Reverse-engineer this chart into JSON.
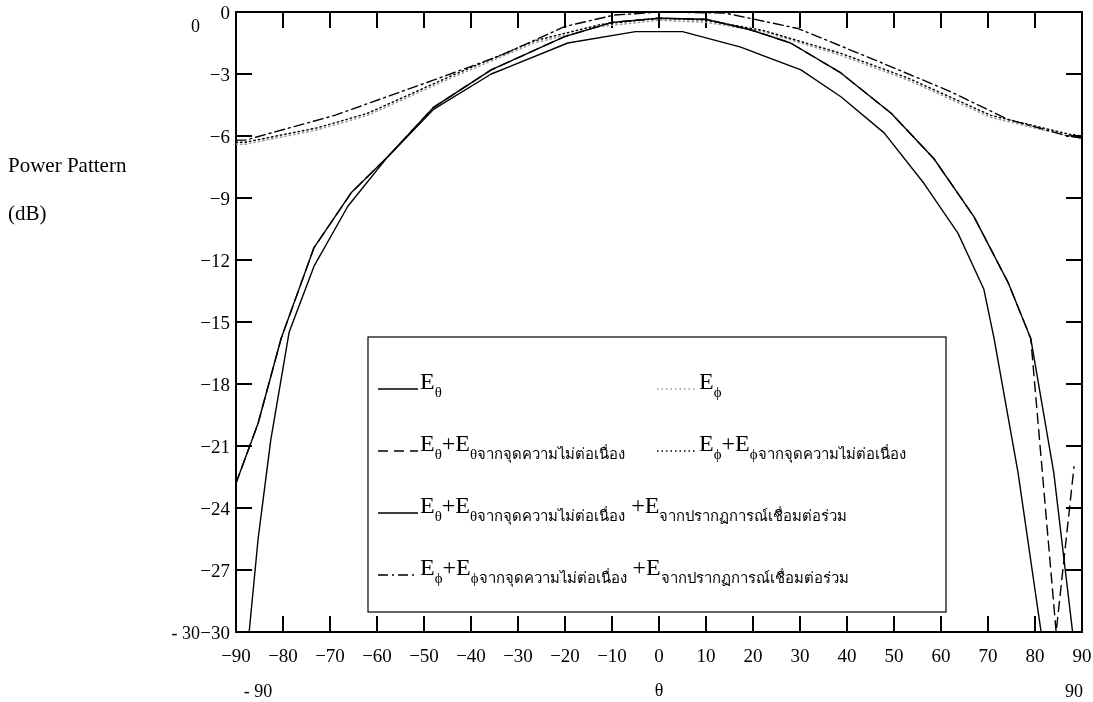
{
  "chart_data": {
    "type": "line",
    "xlabel": "θ",
    "ylabel": "Power Pattern\n(dB)",
    "xlim": [
      -90,
      90
    ],
    "xticks": [
      -90,
      -80,
      -70,
      -60,
      -50,
      -40,
      -30,
      -20,
      -10,
      0,
      10,
      20,
      30,
      40,
      50,
      60,
      70,
      80,
      90
    ],
    "ylim": [
      -30,
      0
    ],
    "yticks": [
      0,
      -3,
      -6,
      -9,
      -12,
      -15,
      -18,
      -21,
      -24,
      -27,
      -30
    ],
    "legend": "bottom",
    "annotations": [
      "0",
      "- 30",
      "- 90",
      "90"
    ],
    "series": [
      {
        "name": "E$_{θ}$",
        "color": "#000000",
        "line_style": "solid",
        "x": [
          -87.2,
          -85.3,
          -82.6,
          -78.7,
          -73.4,
          -66.2,
          -57.7,
          -47.9,
          -35.7,
          -19.4,
          -5,
          0,
          5,
          17.4,
          30.2,
          38.7,
          47.9,
          56.4,
          63.6,
          69.1,
          71.3,
          76.4,
          81.3
        ],
        "values": [
          -30,
          -25.5,
          -20.7,
          -15.5,
          -12.3,
          -9.4,
          -7.0,
          -4.7,
          -3.0,
          -1.5,
          -0.95,
          -0.95,
          -0.95,
          -1.7,
          -2.8,
          -4.1,
          -5.85,
          -8.3,
          -10.7,
          -13.4,
          -15.8,
          -22.3,
          -30
        ]
      },
      {
        "name": "E$_{ϕ}$",
        "color": "#999999",
        "line_style": "dotted",
        "x": [
          -90,
          -88,
          -72.6,
          -62,
          -44.3,
          -26.6,
          -12.3,
          0,
          10,
          22.3,
          38.7,
          53,
          70.6,
          87,
          90
        ],
        "values": [
          -6.4,
          -6.4,
          -5.7,
          -5.0,
          -3.2,
          -1.5,
          -0.7,
          -0.4,
          -0.5,
          -0.95,
          -2.1,
          -3.3,
          -5.1,
          -6.0,
          -6.1
        ]
      },
      {
        "name": "E$_{θ}$+E$_{θจากจุดความไม่ต่อเนื่อง}$",
        "color": "#000000",
        "line_style": "dashed",
        "x": [
          -90,
          -85.3,
          -80.4,
          -73.4,
          -65.5,
          -57.7,
          -47.9,
          -35.7,
          -20.2,
          -10,
          0,
          10,
          19.6,
          28,
          38.7,
          49.4,
          58.5,
          67,
          74.3,
          79.1,
          84.5,
          86.4,
          88.3
        ],
        "values": [
          -22.8,
          -19.9,
          -15.8,
          -11.4,
          -8.75,
          -7.0,
          -4.6,
          -2.8,
          -1.2,
          -0.5,
          -0.3,
          -0.35,
          -0.87,
          -1.5,
          -2.95,
          -4.9,
          -7.1,
          -9.9,
          -13.1,
          -15.8,
          -30,
          -26,
          -22
        ]
      },
      {
        "name": "E$_{ϕ}$+E$_{ϕจากจุดความไม่ต่อเนื่อง}$",
        "color": "#000000",
        "line_style": "dotted",
        "x": [
          -90,
          -88,
          -72.6,
          -62,
          -44.3,
          -26.6,
          -12.3,
          0,
          10,
          22.3,
          38.7,
          53,
          70.6,
          87,
          90
        ],
        "values": [
          -6.3,
          -6.3,
          -5.6,
          -4.9,
          -3.1,
          -1.4,
          -0.6,
          -0.3,
          -0.4,
          -0.9,
          -2.0,
          -3.2,
          -5.0,
          -5.9,
          -6.0
        ]
      },
      {
        "name": "E$_{θ}$+E$_{θจากจุดความไม่ต่อเนื่อง}$ +E$_{จากปรากฏการณ์เชื่อมต่อร่วม}$",
        "color": "#000000",
        "line_style": "solid",
        "x": [
          -90,
          -85.3,
          -80.4,
          -73.4,
          -65.5,
          -57.7,
          -47.9,
          -35.7,
          -20.2,
          -10,
          0,
          10,
          19.6,
          28,
          38.7,
          49.4,
          58.5,
          67,
          74.3,
          79.1,
          84,
          88
        ],
        "values": [
          -22.8,
          -19.9,
          -15.8,
          -11.4,
          -8.75,
          -7.0,
          -4.6,
          -2.8,
          -1.2,
          -0.5,
          -0.3,
          -0.35,
          -0.87,
          -1.5,
          -2.95,
          -4.9,
          -7.1,
          -9.9,
          -13.1,
          -15.8,
          -22.3,
          -30
        ]
      },
      {
        "name": "E$_{ϕ}$+E$_{ϕจากจุดความไม่ต่อเนื่อง}$ +E$_{จากปรากฏการณ์เชื่อมต่อร่วม}$",
        "color": "#000000",
        "line_style": "dashdot",
        "x": [
          -90,
          -88,
          -69,
          -48,
          -33.6,
          -20,
          -9.6,
          0,
          14,
          29.6,
          45.7,
          61.5,
          74.3,
          87,
          90
        ],
        "values": [
          -6.2,
          -6.2,
          -5.0,
          -3.3,
          -2.1,
          -0.7,
          -0.15,
          0,
          -0.05,
          -0.8,
          -2.3,
          -3.8,
          -5.2,
          -6.0,
          -6.1
        ]
      }
    ]
  }
}
